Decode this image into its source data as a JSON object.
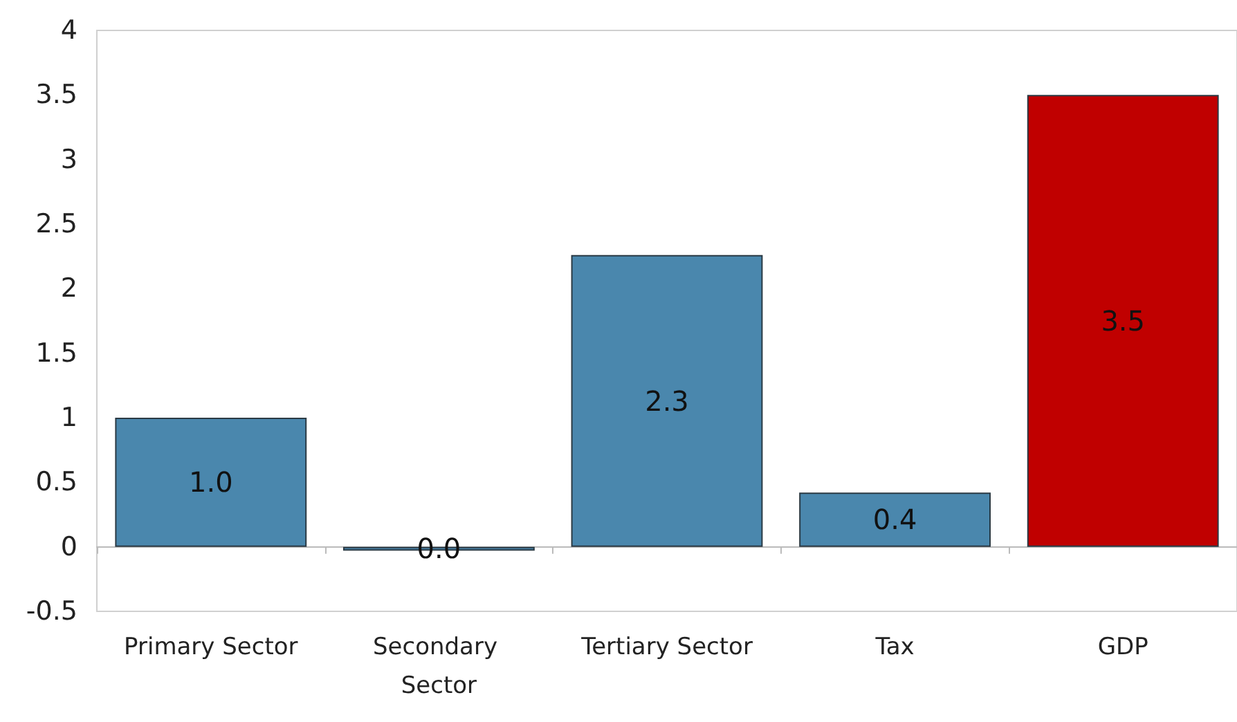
{
  "chart_data": {
    "type": "bar",
    "categories": [
      "Primary Sector",
      "Secondary Sector",
      "Tertiary Sector",
      "Tax",
      "GDP"
    ],
    "values": [
      1.0,
      -0.03,
      2.26,
      0.42,
      3.5
    ],
    "value_labels": [
      "1.0",
      "0.0",
      "2.3",
      "0.4",
      "3.5"
    ],
    "colors": [
      "#4a87ad",
      "#4a87ad",
      "#4a87ad",
      "#4a87ad",
      "#c00000"
    ],
    "ylim": [
      -0.5,
      4
    ],
    "yticks": [
      -0.5,
      0,
      0.5,
      1,
      1.5,
      2,
      2.5,
      3,
      3.5,
      4
    ]
  }
}
